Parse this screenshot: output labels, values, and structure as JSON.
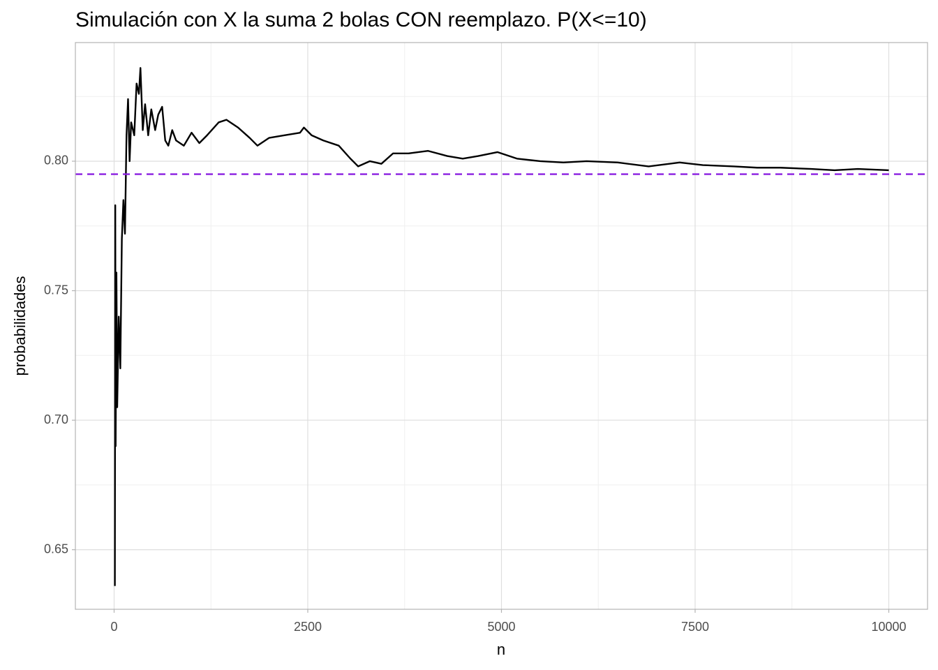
{
  "chart_data": {
    "type": "line",
    "title": "Simulación con X la suma 2 bolas CON reemplazo. P(X<=10)",
    "x_label": "n",
    "y_label": "probabilidades",
    "x": [
      10,
      15,
      20,
      30,
      40,
      60,
      80,
      100,
      120,
      140,
      160,
      180,
      200,
      220,
      260,
      290,
      320,
      340,
      370,
      400,
      440,
      480,
      530,
      570,
      620,
      660,
      700,
      750,
      800,
      900,
      1000,
      1100,
      1200,
      1350,
      1450,
      1600,
      1750,
      1850,
      2000,
      2200,
      2400,
      2450,
      2550,
      2700,
      2900,
      3050,
      3150,
      3300,
      3450,
      3600,
      3800,
      4050,
      4300,
      4500,
      4700,
      4950,
      5200,
      5500,
      5800,
      6100,
      6500,
      6900,
      7300,
      7600,
      8000,
      8300,
      8600,
      9000,
      9300,
      9600,
      10000
    ],
    "values": [
      0.636,
      0.783,
      0.69,
      0.757,
      0.705,
      0.74,
      0.72,
      0.77,
      0.785,
      0.772,
      0.81,
      0.824,
      0.8,
      0.815,
      0.81,
      0.83,
      0.826,
      0.836,
      0.812,
      0.822,
      0.81,
      0.82,
      0.812,
      0.818,
      0.821,
      0.808,
      0.806,
      0.812,
      0.808,
      0.806,
      0.811,
      0.807,
      0.81,
      0.815,
      0.816,
      0.813,
      0.809,
      0.806,
      0.809,
      0.81,
      0.811,
      0.813,
      0.81,
      0.808,
      0.806,
      0.801,
      0.798,
      0.8,
      0.799,
      0.803,
      0.803,
      0.804,
      0.802,
      0.801,
      0.802,
      0.8035,
      0.801,
      0.8,
      0.7995,
      0.8,
      0.7995,
      0.798,
      0.7995,
      0.7985,
      0.798,
      0.7975,
      0.7975,
      0.797,
      0.7965,
      0.797,
      0.7965
    ],
    "color": "#000000",
    "hline": {
      "value": 0.795,
      "color": "#8a1fe0",
      "linetype": "dashed"
    },
    "xlim": [
      -500,
      10500
    ],
    "ylim": [
      0.627,
      0.8458
    ],
    "xticks": [
      0,
      2500,
      5000,
      7500,
      10000
    ],
    "yticks": [
      0.65,
      {
        "value": 0.7,
        "label": "0.70"
      },
      0.75,
      {
        "value": 0.8,
        "label": "0.80"
      }
    ],
    "grid": true,
    "minor_grid": true
  }
}
